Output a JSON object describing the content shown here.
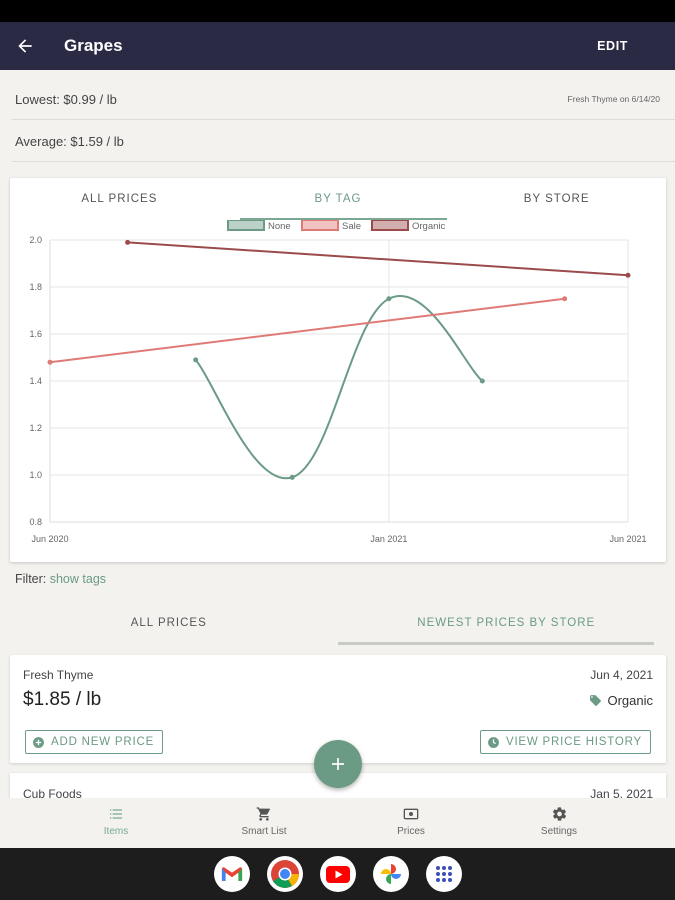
{
  "app": {
    "title": "Grapes",
    "edit_label": "EDIT"
  },
  "summary": {
    "lowest": "Lowest: $0.99 / lb",
    "lowest_source": "Fresh Thyme on 6/14/20",
    "average": "Average: $1.59 / lb"
  },
  "chart_tabs": [
    "ALL PRICES",
    "BY TAG",
    "BY STORE"
  ],
  "chart_tab_active": 1,
  "chart_data": {
    "type": "line",
    "legend": [
      "None",
      "Sale",
      "Organic"
    ],
    "legend_position": "top",
    "colors": {
      "None": "#6b9a85",
      "Sale": "#e07a76",
      "Organic": "#9c4b4d"
    },
    "x_ticks": [
      "Jun 2020",
      "Jan 2021",
      "Jun 2021"
    ],
    "y_ticks": [
      "0.8",
      "1.0",
      "1.2",
      "1.4",
      "1.6",
      "1.8",
      "2.0"
    ],
    "ylim": [
      0.8,
      2.0
    ],
    "xlim": [
      "2020-06-01",
      "2021-06-01"
    ],
    "grid": true,
    "series": [
      {
        "name": "None",
        "points": [
          [
            "2020-09-01",
            1.49
          ],
          [
            "2020-11-01",
            0.99
          ],
          [
            "2021-01-01",
            1.75
          ],
          [
            "2021-03-01",
            1.4
          ]
        ],
        "smooth": true
      },
      {
        "name": "Sale",
        "points": [
          [
            "2020-06-01",
            1.48
          ],
          [
            "2021-04-22",
            1.75
          ]
        ]
      },
      {
        "name": "Organic",
        "points": [
          [
            "2020-07-20",
            1.99
          ],
          [
            "2021-06-01",
            1.85
          ]
        ]
      }
    ]
  },
  "filter": {
    "label": "Filter:",
    "link": "show tags"
  },
  "list_tabs": [
    "ALL PRICES",
    "NEWEST PRICES BY STORE"
  ],
  "list_tab_active": 1,
  "prices": [
    {
      "store": "Fresh Thyme",
      "date": "Jun 4, 2021",
      "price": "$1.85 / lb",
      "tag": "Organic"
    },
    {
      "store": "Cub Foods",
      "date": "Jan 5, 2021"
    }
  ],
  "buttons": {
    "add_price": "ADD NEW PRICE",
    "view_history": "VIEW PRICE HISTORY"
  },
  "bottom_nav": [
    "Items",
    "Smart List",
    "Prices",
    "Settings"
  ],
  "taskbar_apps": [
    "gmail-icon",
    "chrome-icon",
    "youtube-icon",
    "photos-icon",
    "app-launcher-icon"
  ],
  "colors": {
    "appbar": "#2a2a45",
    "accent": "#6b9a85"
  }
}
